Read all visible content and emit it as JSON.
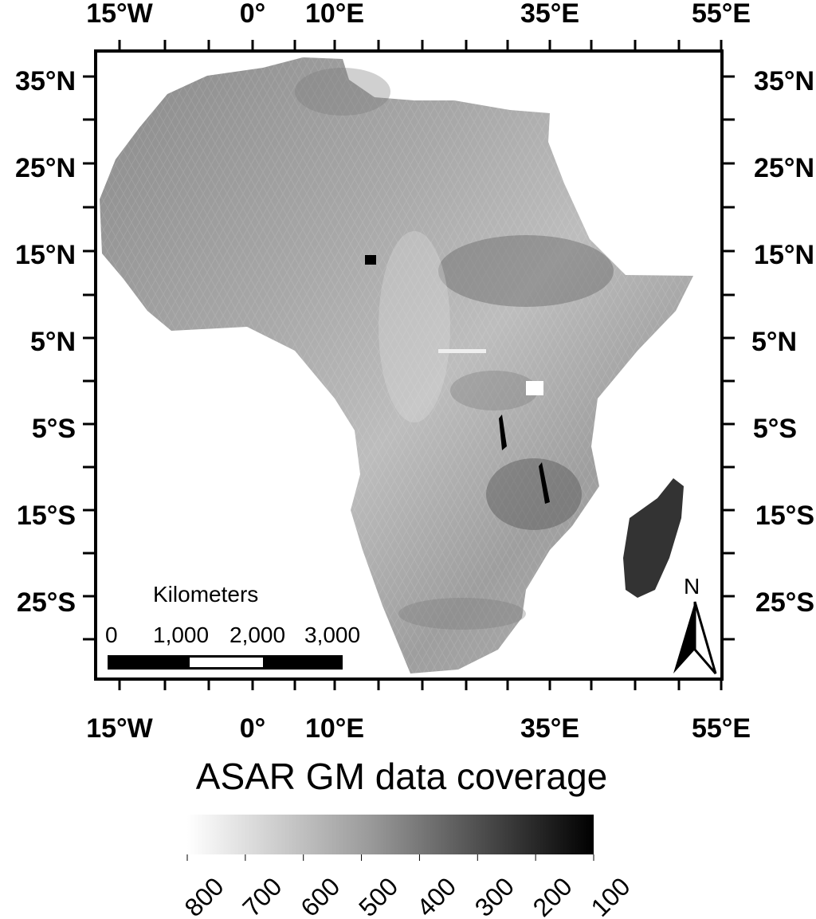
{
  "map": {
    "top_lon_labels": [
      "15°W",
      "0°",
      "10°E",
      "35°E",
      "55°E"
    ],
    "bottom_lon_labels": [
      "15°W",
      "0°",
      "10°E",
      "35°E",
      "55°E"
    ],
    "left_lat_labels": [
      "35°N",
      "25°N",
      "15°N",
      "5°N",
      "5°S",
      "15°S",
      "25°S"
    ],
    "right_lat_labels": [
      "35°N",
      "25°N",
      "15°N",
      "5°N",
      "5°S",
      "15°S",
      "25°S"
    ],
    "north_arrow_label": "N",
    "scale_bar": {
      "title": "Kilometers",
      "ticks": [
        "0",
        "1,000",
        "2,000",
        "3,000"
      ]
    }
  },
  "legend": {
    "title": "ASAR GM data coverage",
    "ticks": [
      "800",
      "700",
      "600",
      "500",
      "400",
      "300",
      "200",
      "100"
    ],
    "color_low": "#ffffff",
    "color_high": "#000000"
  }
}
